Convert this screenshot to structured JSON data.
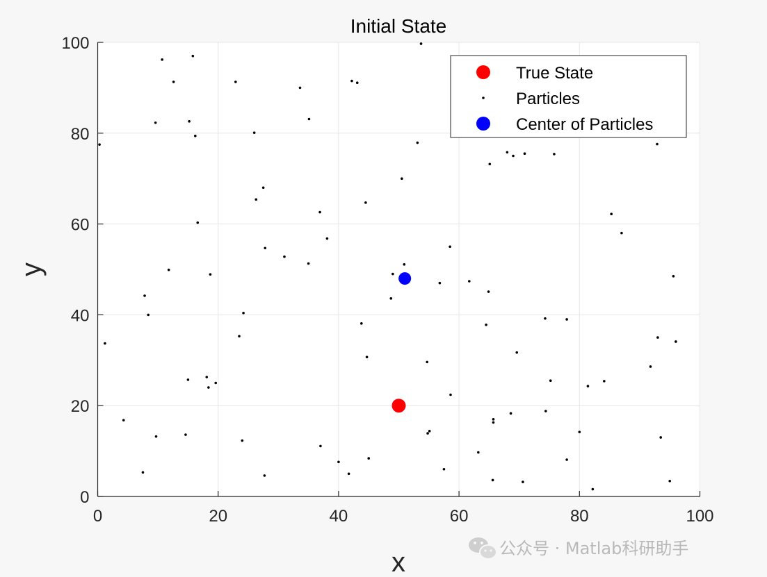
{
  "chart_data": {
    "type": "scatter",
    "title": "Initial State",
    "xlabel": "x",
    "ylabel": "y",
    "xlim": [
      0,
      100
    ],
    "ylim": [
      0,
      100
    ],
    "xticks": [
      0,
      20,
      40,
      60,
      80,
      100
    ],
    "yticks": [
      0,
      20,
      40,
      60,
      80,
      100
    ],
    "grid": true,
    "legend_position": "top-right",
    "series": [
      {
        "name": "True State",
        "color": "#ff0000",
        "marker": "large-dot",
        "points": [
          [
            50,
            20
          ]
        ]
      },
      {
        "name": "Particles",
        "color": "#000000",
        "marker": "small-dot",
        "points": [
          [
            0.3,
            77.5
          ],
          [
            1.2,
            33.7
          ],
          [
            4.3,
            16.8
          ],
          [
            7.5,
            5.3
          ],
          [
            7.8,
            44.2
          ],
          [
            8.4,
            40.0
          ],
          [
            9.6,
            82.3
          ],
          [
            9.7,
            13.2
          ],
          [
            10.7,
            96.2
          ],
          [
            11.8,
            49.9
          ],
          [
            12.6,
            91.3
          ],
          [
            14.6,
            13.6
          ],
          [
            15.0,
            25.7
          ],
          [
            15.2,
            82.6
          ],
          [
            15.8,
            97.0
          ],
          [
            16.2,
            79.4
          ],
          [
            16.6,
            60.3
          ],
          [
            18.1,
            26.3
          ],
          [
            18.4,
            24.0
          ],
          [
            18.7,
            48.9
          ],
          [
            19.6,
            25.0
          ],
          [
            22.9,
            91.3
          ],
          [
            23.5,
            35.3
          ],
          [
            24.0,
            12.3
          ],
          [
            24.2,
            40.4
          ],
          [
            26.0,
            80.1
          ],
          [
            26.3,
            65.4
          ],
          [
            27.5,
            68.0
          ],
          [
            27.7,
            4.6
          ],
          [
            27.8,
            54.7
          ],
          [
            31.0,
            52.8
          ],
          [
            33.6,
            90.0
          ],
          [
            35.0,
            51.3
          ],
          [
            35.1,
            83.1
          ],
          [
            36.9,
            62.6
          ],
          [
            37.0,
            11.1
          ],
          [
            38.1,
            56.8
          ],
          [
            40.0,
            7.6
          ],
          [
            41.7,
            5.0
          ],
          [
            42.2,
            91.5
          ],
          [
            43.1,
            91.1
          ],
          [
            43.8,
            38.1
          ],
          [
            44.5,
            64.7
          ],
          [
            44.7,
            30.7
          ],
          [
            45.0,
            8.4
          ],
          [
            48.7,
            43.6
          ],
          [
            49.0,
            49.0
          ],
          [
            50.5,
            70.0
          ],
          [
            50.9,
            51.1
          ],
          [
            53.1,
            77.9
          ],
          [
            53.7,
            99.7
          ],
          [
            54.7,
            29.6
          ],
          [
            54.8,
            13.9
          ],
          [
            55.1,
            14.4
          ],
          [
            56.8,
            47.0
          ],
          [
            57.5,
            6.0
          ],
          [
            58.5,
            55.0
          ],
          [
            58.6,
            22.4
          ],
          [
            61.7,
            47.4
          ],
          [
            63.2,
            9.7
          ],
          [
            64.5,
            37.8
          ],
          [
            64.9,
            45.1
          ],
          [
            65.1,
            73.2
          ],
          [
            65.6,
            3.6
          ],
          [
            65.7,
            16.3
          ],
          [
            65.7,
            17.0
          ],
          [
            68.0,
            75.8
          ],
          [
            68.6,
            18.3
          ],
          [
            69.0,
            75.0
          ],
          [
            69.6,
            31.7
          ],
          [
            70.6,
            3.2
          ],
          [
            70.9,
            75.5
          ],
          [
            74.3,
            39.2
          ],
          [
            74.4,
            18.8
          ],
          [
            75.2,
            25.5
          ],
          [
            75.8,
            75.4
          ],
          [
            77.9,
            8.1
          ],
          [
            77.9,
            39.0
          ],
          [
            80.0,
            14.2
          ],
          [
            81.4,
            24.3
          ],
          [
            82.2,
            1.6
          ],
          [
            84.1,
            25.4
          ],
          [
            85.3,
            62.2
          ],
          [
            87.0,
            58.0
          ],
          [
            91.8,
            28.6
          ],
          [
            92.9,
            77.6
          ],
          [
            93.0,
            35.0
          ],
          [
            93.5,
            13.0
          ],
          [
            95.0,
            3.4
          ],
          [
            95.6,
            48.5
          ],
          [
            96.0,
            34.1
          ]
        ]
      },
      {
        "name": "Center of Particles",
        "color": "#0000ff",
        "marker": "large-dot",
        "points": [
          [
            51,
            48
          ]
        ]
      }
    ]
  },
  "watermark": {
    "icon": "wechat-icon",
    "text": "公众号 · Matlab科研助手"
  }
}
